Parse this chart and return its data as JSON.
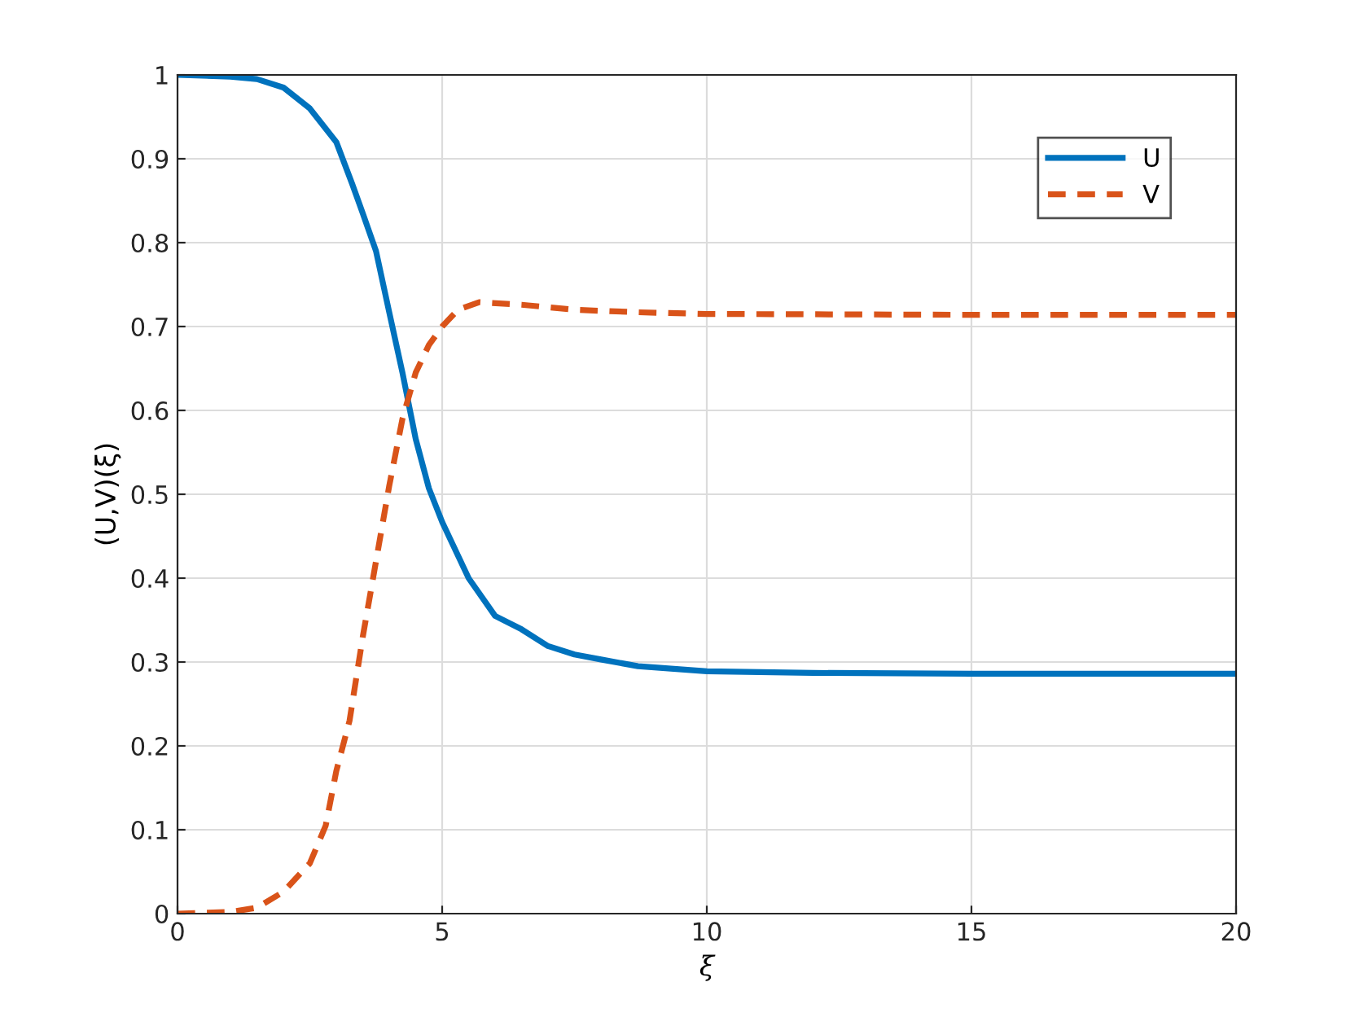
{
  "chart_data": {
    "type": "line",
    "xlabel": "ξ",
    "ylabel": "(U,V)(ξ)",
    "xlim": [
      0,
      20
    ],
    "ylim": [
      0,
      1
    ],
    "xticks": [
      0,
      5,
      10,
      15,
      20
    ],
    "yticks": [
      0,
      0.1,
      0.2,
      0.3,
      0.4,
      0.5,
      0.6,
      0.7,
      0.8,
      0.9,
      1
    ],
    "grid": true,
    "legend": "top right",
    "marker": "none",
    "series": [
      {
        "name": "U",
        "color": "#0072bd",
        "line_style": "solid",
        "x": [
          0,
          1,
          1.5,
          2,
          2.5,
          3,
          3.3,
          3.5,
          3.75,
          4,
          4.25,
          4.5,
          4.75,
          5,
          5.5,
          6,
          6.5,
          7,
          7.5,
          8,
          8.7,
          10,
          12,
          15,
          20
        ],
        "values": [
          1.0,
          0.998,
          0.995,
          0.985,
          0.96,
          0.92,
          0.87,
          0.835,
          0.79,
          0.717,
          0.645,
          0.566,
          0.507,
          0.467,
          0.4,
          0.355,
          0.339,
          0.319,
          0.309,
          0.303,
          0.295,
          0.289,
          0.287,
          0.286,
          0.286
        ]
      },
      {
        "name": "V",
        "color": "#d95319",
        "line_style": "dashed",
        "x": [
          0,
          1,
          1.5,
          2,
          2.5,
          2.8,
          3,
          3.25,
          3.5,
          3.75,
          4,
          4.25,
          4.5,
          4.75,
          5,
          5.3,
          5.7,
          6.5,
          7.5,
          8.7,
          10,
          15,
          20
        ],
        "values": [
          0,
          0.002,
          0.007,
          0.026,
          0.06,
          0.105,
          0.17,
          0.23,
          0.33,
          0.42,
          0.51,
          0.59,
          0.645,
          0.678,
          0.7,
          0.72,
          0.729,
          0.726,
          0.72,
          0.717,
          0.715,
          0.714,
          0.714
        ]
      }
    ]
  }
}
